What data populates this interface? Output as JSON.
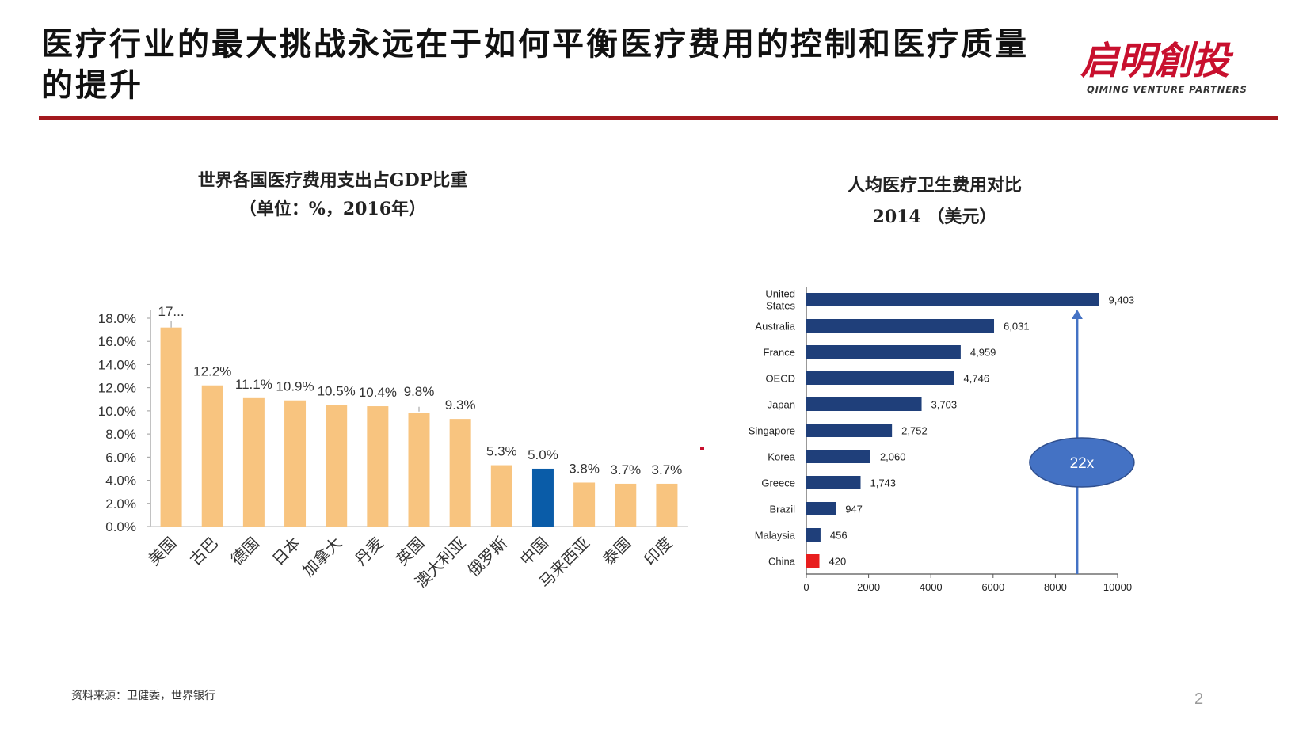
{
  "slide": {
    "title": "医疗行业的最大挑战永远在于如何平衡医疗费用的控制和医疗质量的提升",
    "logo_cn": "启明創投",
    "logo_en": "QIMING VENTURE PARTNERS",
    "footnote": "资料来源：卫健委，世界银行",
    "page_number": "2",
    "colors": {
      "rule": "#a3191e",
      "logo": "#c8102e"
    }
  },
  "chart_data": [
    {
      "type": "bar",
      "title": "世界各国医疗费用支出占GDP比重",
      "subtitle": "（单位：%，2016年）",
      "categories": [
        "美国",
        "古巴",
        "德国",
        "日本",
        "加拿大",
        "丹麦",
        "英国",
        "澳大利亚",
        "俄罗斯",
        "中国",
        "马来西亚",
        "泰国",
        "印度"
      ],
      "values": [
        17.2,
        12.2,
        11.1,
        10.9,
        10.5,
        10.4,
        9.8,
        9.3,
        5.3,
        5.0,
        3.8,
        3.7,
        3.7
      ],
      "data_labels": [
        "17...",
        "12.2%",
        "11.1%",
        "10.9%",
        "10.5%",
        "10.4%",
        "9.8%",
        "9.3%",
        "5.3%",
        "5.0%",
        "3.8%",
        "3.7%",
        "3.7%"
      ],
      "yticks": [
        "0.0%",
        "2.0%",
        "4.0%",
        "6.0%",
        "8.0%",
        "10.0%",
        "12.0%",
        "14.0%",
        "16.0%",
        "18.0%"
      ],
      "ylim": [
        0,
        18
      ],
      "bar_color": "#f8c47f",
      "highlight_color": "#0a5ca8",
      "highlight_category": "中国",
      "grid": false,
      "legend": "none"
    },
    {
      "type": "bar",
      "orientation": "horizontal",
      "title": "人均医疗卫生费用对比",
      "subtitle": "2014 （美元）",
      "categories": [
        "United States",
        "Australia",
        "France",
        "OECD",
        "Japan",
        "Singapore",
        "Korea",
        "Greece",
        "Brazil",
        "Malaysia",
        "China"
      ],
      "values": [
        9403,
        6031,
        4959,
        4746,
        3703,
        2752,
        2060,
        1743,
        947,
        456,
        420
      ],
      "data_labels": [
        "9,403",
        "6,031",
        "4,959",
        "4,746",
        "3,703",
        "2,752",
        "2,060",
        "1,743",
        "947",
        "456",
        "420"
      ],
      "xticks": [
        "0",
        "2000",
        "4000",
        "6000",
        "8000",
        "10000"
      ],
      "xlim": [
        0,
        10000
      ],
      "bar_color": "#1f3f7a",
      "highlight_color": "#e81e1e",
      "highlight_category": "China",
      "annotation": {
        "text": "22x",
        "color": "#4472c4",
        "arrow_from": 420,
        "arrow_to": 9403
      },
      "grid": false,
      "legend": "none"
    }
  ]
}
